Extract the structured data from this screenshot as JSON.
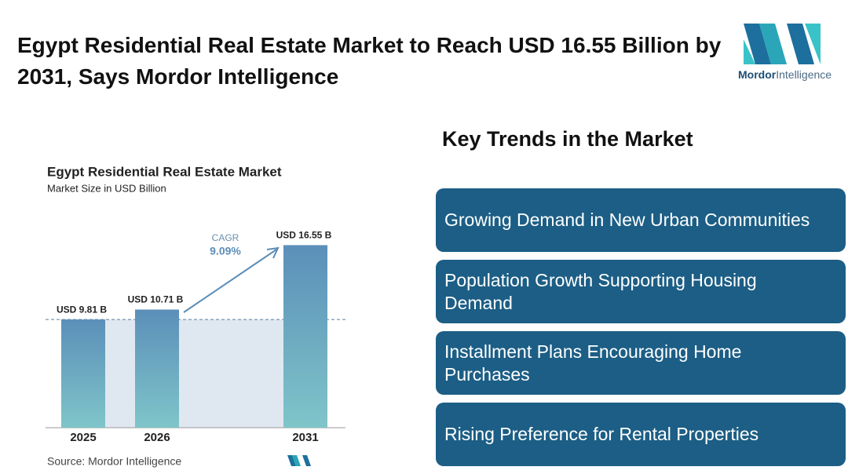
{
  "header": {
    "title": "Egypt Residential Real Estate Market to Reach USD 16.55 Billion by 2031, Says Mordor Intelligence"
  },
  "logo": {
    "brand": "Mordor",
    "suffix": "Intelligence"
  },
  "chart_data": {
    "type": "bar",
    "title": "Egypt Residential Real Estate Market",
    "subtitle": "Market Size in USD Billion",
    "categories": [
      "2025",
      "2026",
      "2031"
    ],
    "values": [
      9.81,
      10.71,
      16.55
    ],
    "value_labels": [
      "USD 9.81 B",
      "USD 10.71 B",
      "USD 16.55 B"
    ],
    "color": "#5b8fb9",
    "ylim": [
      0,
      18
    ],
    "annotation": {
      "label": "CAGR",
      "value": "9.09%"
    },
    "source": "Source:  Mordor Intelligence"
  },
  "trends": {
    "title": "Key Trends in the Market",
    "items": [
      "Growing Demand in New Urban Communities",
      "Population Growth Supporting Housing Demand",
      "Installment Plans Encouraging Home Purchases",
      "Rising Preference for Rental Properties"
    ]
  }
}
